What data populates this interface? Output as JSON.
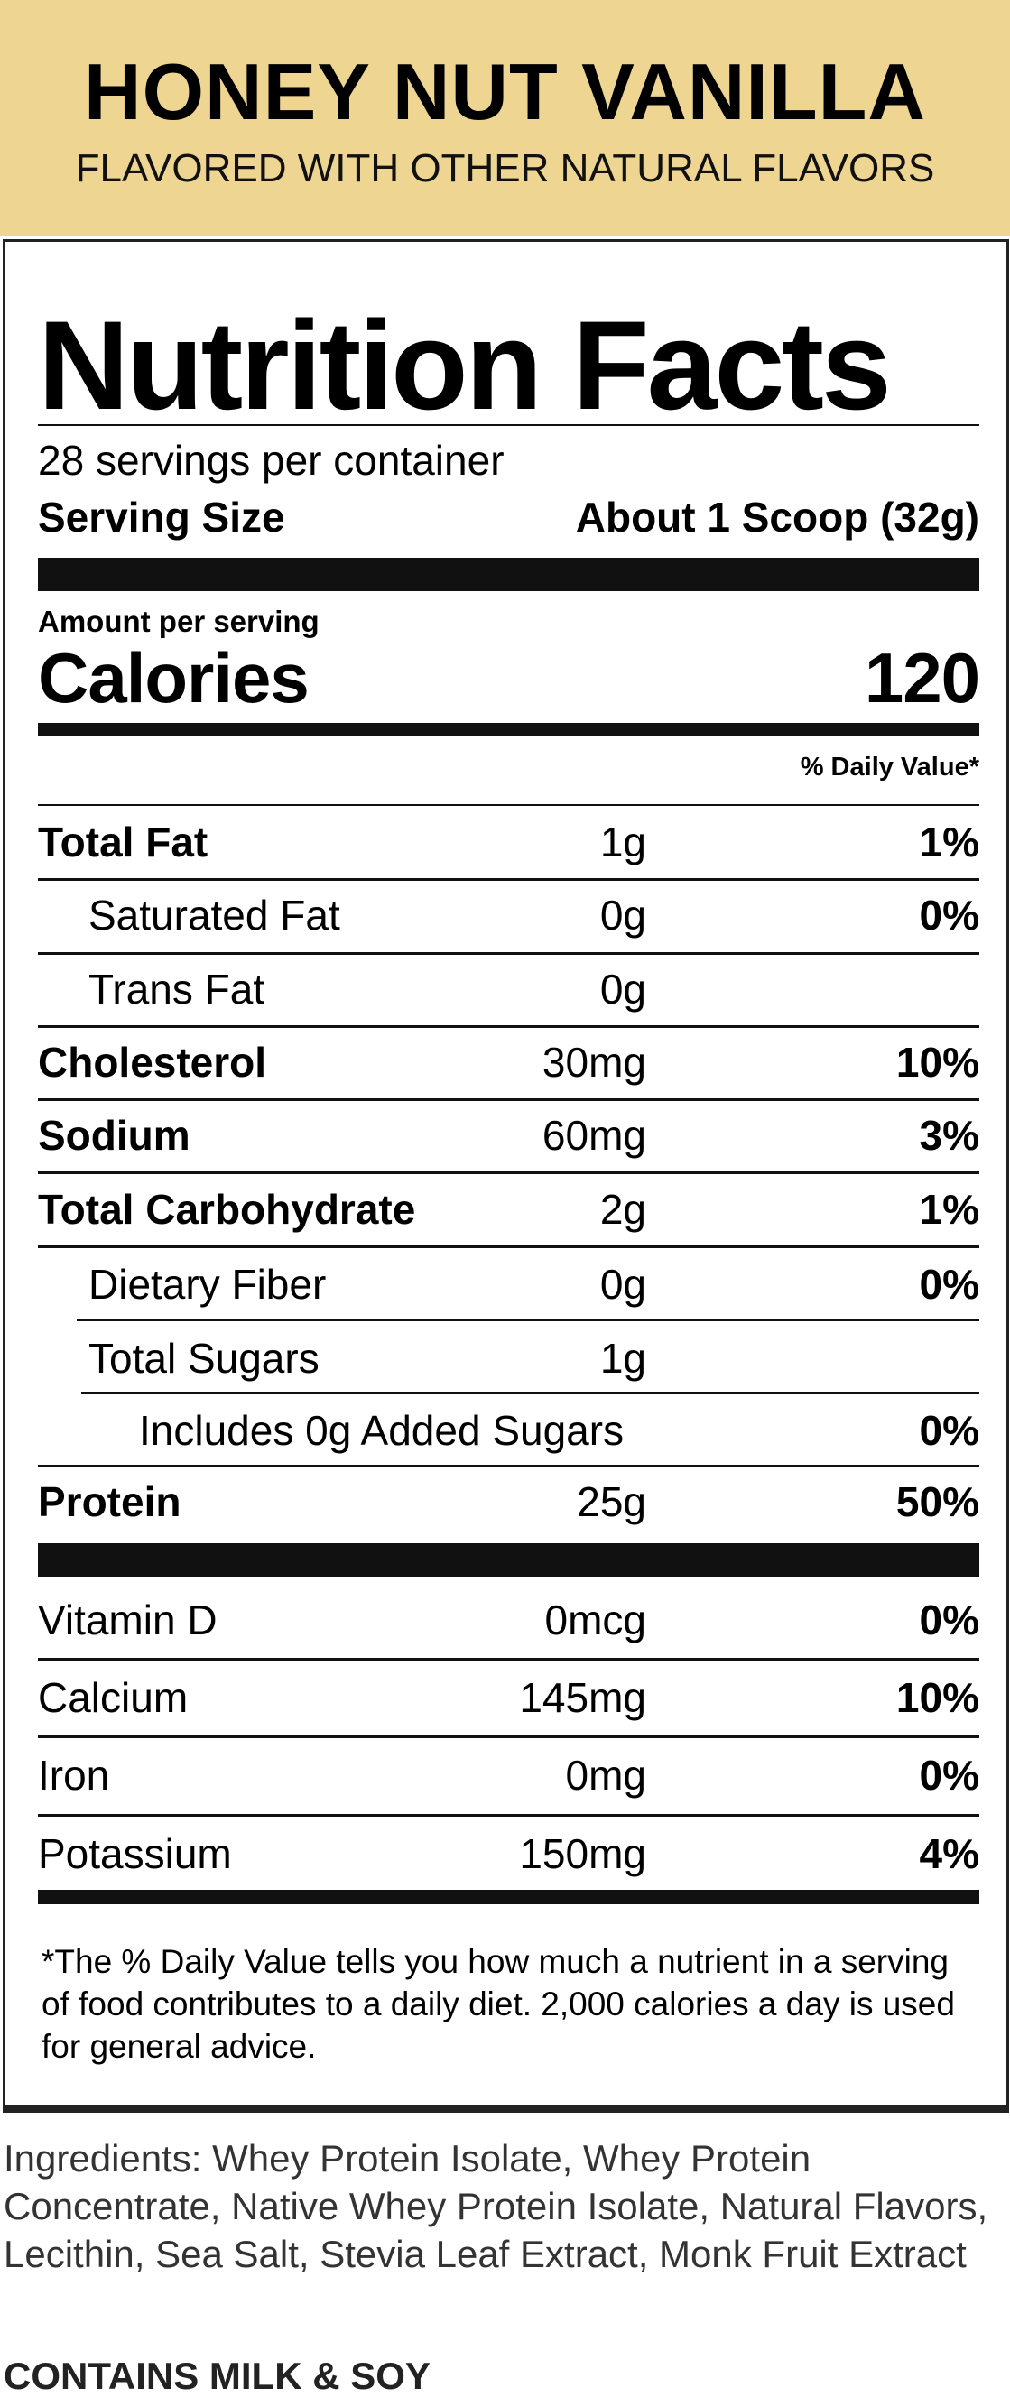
{
  "flavor": {
    "title": "HONEY NUT VANILLA",
    "subtitle": "FLAVORED WITH OTHER NATURAL FLAVORS",
    "band_color": "#efd592"
  },
  "label": {
    "title": "Nutrition Facts",
    "servings": "28 servings per container",
    "serving_size_label": "Serving Size",
    "serving_size_value": "About 1 Scoop (32g)",
    "amount_per_serving": "Amount per serving",
    "calories_label": "Calories",
    "calories_value": "120",
    "dv_header": "% Daily Value*",
    "nutrients": [
      {
        "name": "Total Fat",
        "amount": "1g",
        "dv": "1%",
        "bold": true,
        "indent": 0
      },
      {
        "name": "Saturated Fat",
        "amount": "0g",
        "dv": "0%",
        "bold": false,
        "indent": 1
      },
      {
        "name": "Trans Fat",
        "amount": "0g",
        "dv": "",
        "bold": false,
        "indent": 1
      },
      {
        "name": "Cholesterol",
        "amount": "30mg",
        "dv": "10%",
        "bold": true,
        "indent": 0
      },
      {
        "name": "Sodium",
        "amount": "60mg",
        "dv": "3%",
        "bold": true,
        "indent": 0
      },
      {
        "name": "Total Carbohydrate",
        "amount": "2g",
        "dv": "1%",
        "bold": true,
        "indent": 0
      },
      {
        "name": "Dietary Fiber",
        "amount": "0g",
        "dv": "0%",
        "bold": false,
        "indent": 1
      },
      {
        "name": "Total Sugars",
        "amount": "1g",
        "dv": "",
        "bold": false,
        "indent": 1
      },
      {
        "name": "Includes 0g Added Sugars",
        "amount": "",
        "dv": "0%",
        "bold": false,
        "indent": 2
      },
      {
        "name": "Protein",
        "amount": "25g",
        "dv": "50%",
        "bold": true,
        "indent": 0
      }
    ],
    "vitamins": [
      {
        "name": "Vitamin D",
        "amount": "0mcg",
        "dv": "0%"
      },
      {
        "name": "Calcium",
        "amount": "145mg",
        "dv": "10%"
      },
      {
        "name": "Iron",
        "amount": "0mg",
        "dv": "0%"
      },
      {
        "name": "Potassium",
        "amount": "150mg",
        "dv": "4%"
      }
    ],
    "footnote": "*The % Daily Value tells you how much a nutrient in a serving of food contributes to a daily diet. 2,000 calories a day is used for general advice."
  },
  "ingredients": {
    "label": "Ingredients:",
    "text": "Whey Protein Isolate, Whey Protein Concentrate, Native Whey Protein Isolate, Natural Flavors, Lecithin, Sea Salt, Stevia Leaf Extract, Monk Fruit Extract"
  },
  "allergens": "CONTAINS MILK & SOY"
}
